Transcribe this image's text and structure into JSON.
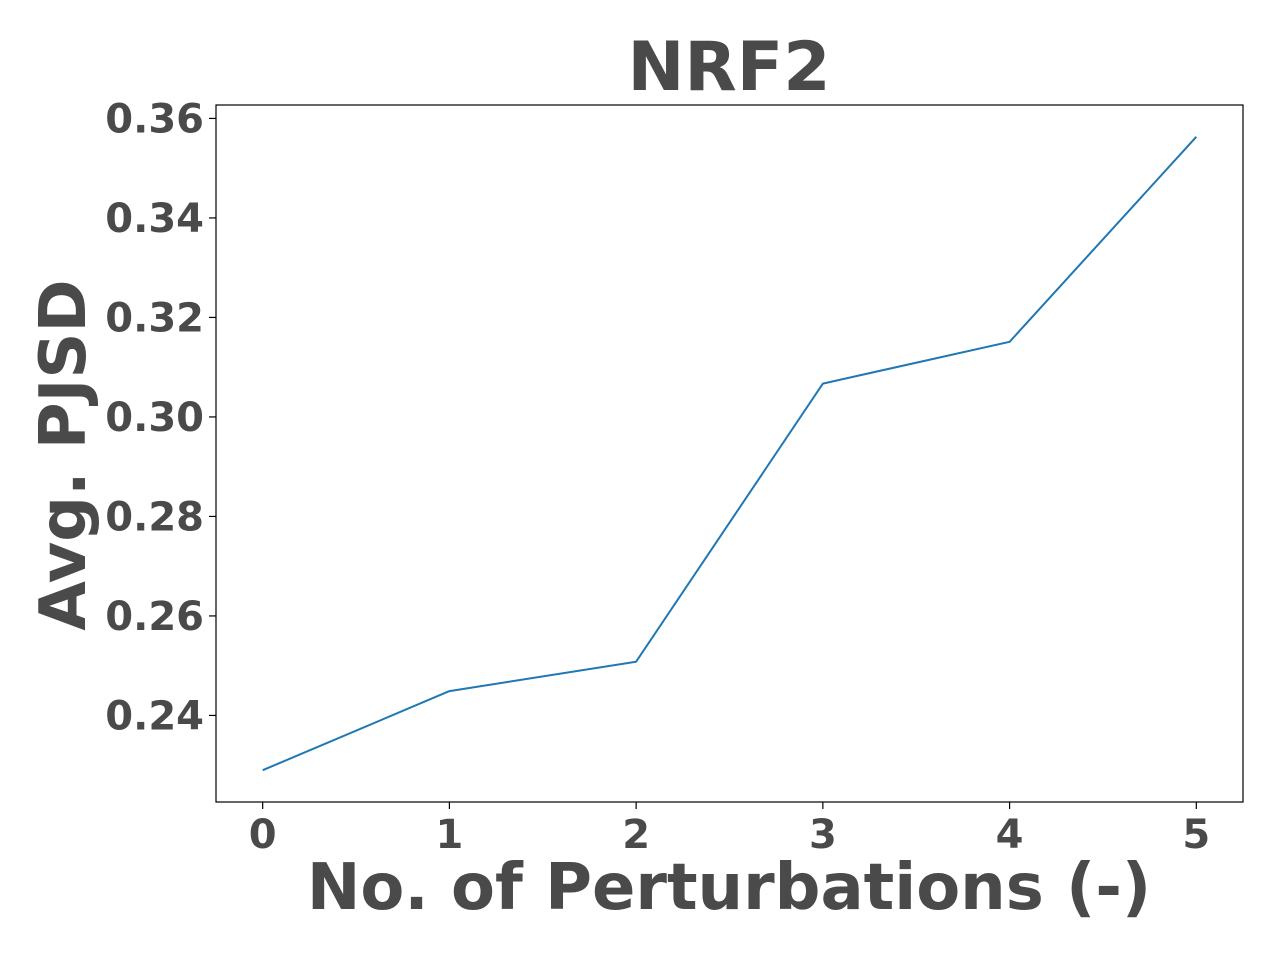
{
  "chart_data": {
    "type": "line",
    "title": "NRF2",
    "xlabel": "No. of Perturbations (-)",
    "ylabel": "Avg. PJSD",
    "x": [
      0,
      1,
      2,
      3,
      4,
      5
    ],
    "series": [
      {
        "values": [
          0.229,
          0.2449,
          0.2508,
          0.3067,
          0.3151,
          0.3563
        ],
        "color": "#1f77b4"
      }
    ],
    "xticks": [
      0,
      1,
      2,
      3,
      4,
      5
    ],
    "xtick_labels": [
      "0",
      "1",
      "2",
      "3",
      "4",
      "5"
    ],
    "yticks": [
      0.24,
      0.26,
      0.28,
      0.3,
      0.32,
      0.34,
      0.36
    ],
    "ytick_labels": [
      "0.24",
      "0.26",
      "0.28",
      "0.30",
      "0.32",
      "0.34",
      "0.36"
    ],
    "xlim": [
      -0.25,
      5.25
    ],
    "ylim": [
      0.2226,
      0.3627
    ],
    "grid": false,
    "legend": "none"
  }
}
